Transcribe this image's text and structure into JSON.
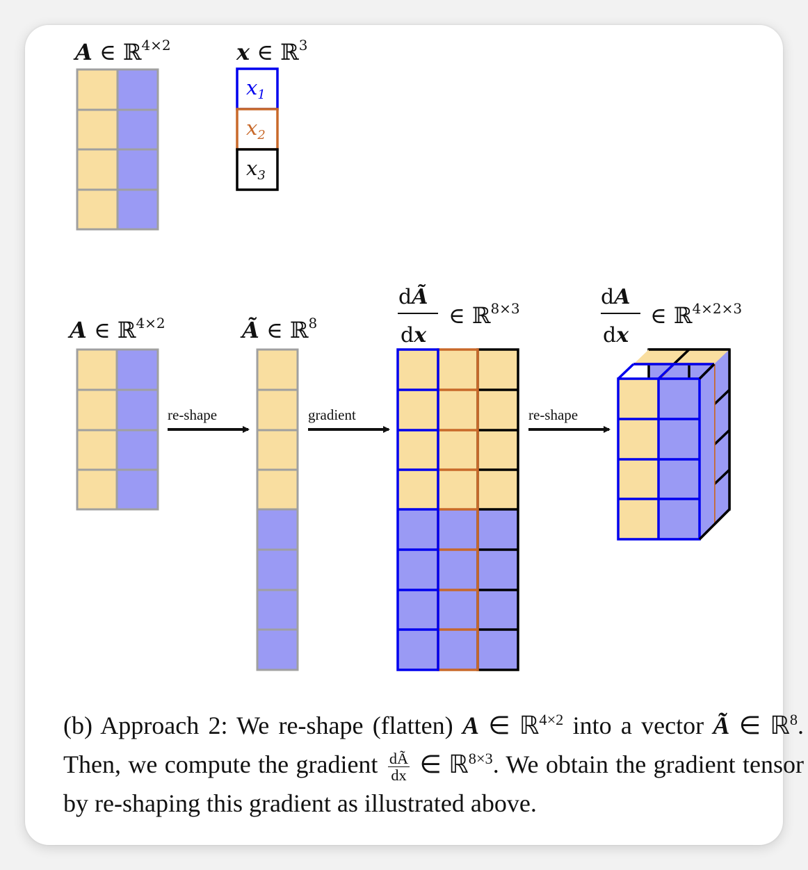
{
  "colors": {
    "orange_fill": "#f9dea0",
    "blue_fill": "#9a9af4",
    "grid_gray": "#a0a0a0",
    "x1_blue": "#0000ee",
    "x2_orange": "#c8692a",
    "x3_black": "#000000"
  },
  "top": {
    "matrix_label": {
      "sym": "A",
      "rel": " ∈ ℝ",
      "sup": "4×2"
    },
    "vector_label": {
      "sym": "x",
      "rel": " ∈ ℝ",
      "sup": "3"
    },
    "entries": [
      {
        "base": "x",
        "sub": "1"
      },
      {
        "base": "x",
        "sub": "2"
      },
      {
        "base": "x",
        "sub": "3"
      }
    ]
  },
  "bottom": {
    "matrix_label": {
      "sym": "A",
      "rel": " ∈ ℝ",
      "sup": "4×2"
    },
    "vector_label": {
      "sym": "Ã",
      "rel": " ∈ ℝ",
      "sup": "8"
    },
    "jacobian_label": {
      "num_d": "d",
      "num_sym": "Ã",
      "den_d": "d",
      "den_sym": "x",
      "rel": "∈ ℝ",
      "sup": "8×3"
    },
    "tensor_label": {
      "num_d": "d",
      "num_sym": "A",
      "den_d": "d",
      "den_sym": "x",
      "rel": "∈ ℝ",
      "sup": "4×2×3"
    },
    "arrows": [
      "re-shape",
      "gradient",
      "re-shape"
    ]
  },
  "caption": {
    "p1": "(b) Approach 2: We re-shape (flatten) ",
    "A": "A",
    "in": " ∈ ℝ",
    "sup1": "4×2",
    "p2": " into a vector ",
    "At": "Ã",
    "sup2": "8",
    "p3": ". Then, we compute the gradient ",
    "frac_num": "dÃ",
    "frac_den": "dx",
    "sup3": "8×3",
    "p4": ". We obtain the gradient tensor by re-shaping this gradient as illustrated above."
  }
}
